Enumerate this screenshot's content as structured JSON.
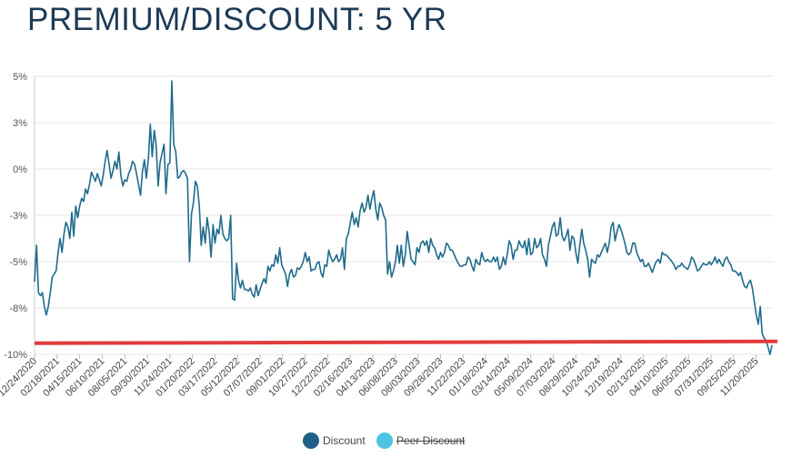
{
  "header": {
    "title": "PREMIUM/DISCOUNT: 5 YR"
  },
  "legend": {
    "discount_label": "Discount",
    "peer_label": "Peer Discount"
  },
  "colors": {
    "series_line": "#1f6b8c",
    "discount_dot": "#1f5f87",
    "peer_dot": "#4fc3e3",
    "threshold_line": "#e23b3b",
    "grid": "#e6e6e6"
  },
  "chart_data": {
    "type": "line",
    "title": "PREMIUM/DISCOUNT: 5 YR",
    "y_ticks": [
      "5%",
      "3%",
      "0%",
      "-3%",
      "-5%",
      "-8%",
      "-10%"
    ],
    "y_tick_values": [
      5,
      3,
      0,
      -3,
      -5,
      -8,
      -10
    ],
    "ylim": [
      -10,
      5
    ],
    "x_ticks": [
      "12/24/2020",
      "02/18/2021",
      "04/15/2021",
      "06/10/2021",
      "08/05/2021",
      "09/30/2021",
      "11/24/2021",
      "01/20/2022",
      "03/17/2022",
      "05/12/2022",
      "07/07/2022",
      "09/01/2022",
      "10/27/2022",
      "12/22/2022",
      "02/16/2023",
      "04/13/2023",
      "06/08/2023",
      "08/03/2023",
      "09/28/2023",
      "11/22/2023",
      "01/18/2024",
      "03/14/2024",
      "05/09/2024",
      "07/03/2024",
      "08/29/2024",
      "10/24/2024",
      "12/19/2024",
      "02/13/2025",
      "04/10/2025",
      "06/05/2025",
      "07/31/2025",
      "09/25/2025",
      "11/20/2025"
    ],
    "grid": true,
    "legend_position": "bottom-center",
    "threshold": -9.5,
    "series": [
      {
        "name": "Discount",
        "values": [
          -6.3,
          -4.3,
          -7.0,
          -7.2,
          -7.0,
          -7.9,
          -8.3,
          -7.9,
          -7.0,
          -6.0,
          -5.8,
          -5.6,
          -4.6,
          -4.0,
          -4.6,
          -3.8,
          -3.3,
          -3.5,
          -4.0,
          -2.8,
          -3.9,
          -2.4,
          -3.1,
          -2.4,
          -1.9,
          -2.1,
          -1.3,
          -1.6,
          -1.0,
          -0.2,
          -0.5,
          -0.8,
          -0.3,
          -0.7,
          -1.1,
          -0.4,
          0.5,
          1.2,
          0.3,
          -0.6,
          -0.1,
          0.5,
          0.0,
          1.1,
          -0.4,
          -1.1,
          -0.7,
          -0.8,
          -0.3,
          0.0,
          0.5,
          0.3,
          -0.3,
          -1.0,
          -1.7,
          -0.2,
          0.6,
          -0.6,
          0.6,
          2.9,
          0.8,
          2.5,
          1.6,
          -1.1,
          0.4,
          1.0,
          1.6,
          -1.6,
          0.3,
          0.4,
          4.8,
          1.6,
          1.1,
          -0.6,
          -0.5,
          -0.2,
          -0.1,
          -0.3,
          -0.6,
          -5.0,
          -2.9,
          -2.2,
          -0.8,
          -1.1,
          -2.4,
          -4.3,
          -3.5,
          -4.2,
          -3.1,
          -3.7,
          -4.8,
          -3.4,
          -4.2,
          -3.6,
          -3.8,
          -3.0,
          -3.8,
          -4.0,
          -4.1,
          -4.0,
          -3.0,
          -7.4,
          -7.5,
          -5.1,
          -6.2,
          -6.7,
          -6.2,
          -6.8,
          -6.8,
          -6.9,
          -6.7,
          -7.1,
          -7.3,
          -6.5,
          -7.2,
          -6.8,
          -6.4,
          -6.1,
          -6.4,
          -5.3,
          -5.6,
          -5.2,
          -5.3,
          -4.7,
          -5.1,
          -4.4,
          -5.2,
          -5.5,
          -5.8,
          -6.6,
          -5.8,
          -5.5,
          -6.0,
          -5.9,
          -5.4,
          -5.5,
          -5.3,
          -5.0,
          -4.6,
          -5.0,
          -4.8,
          -5.6,
          -5.5,
          -5.5,
          -5.1,
          -5.0,
          -5.7,
          -6.0,
          -5.2,
          -5.3,
          -4.5,
          -4.8,
          -5.0,
          -4.9,
          -4.7,
          -5.0,
          -4.9,
          -4.4,
          -5.5,
          -4.0,
          -3.8,
          -3.3,
          -2.8,
          -3.4,
          -3.1,
          -3.5,
          -2.7,
          -2.2,
          -2.8,
          -2.5,
          -1.7,
          -2.6,
          -1.9,
          -1.4,
          -2.6,
          -3.2,
          -2.2,
          -2.5,
          -3.0,
          -3.2,
          -5.8,
          -5.0,
          -6.0,
          -5.6,
          -5.0,
          -4.3,
          -5.1,
          -4.3,
          -5.3,
          -4.7,
          -3.7,
          -4.3,
          -4.9,
          -5.0,
          -5.2,
          -4.4,
          -4.6,
          -4.2,
          -4.1,
          -4.3,
          -4.1,
          -4.6,
          -4.0,
          -4.3,
          -4.4,
          -4.7,
          -4.9,
          -4.6,
          -4.8,
          -4.6,
          -4.2,
          -4.3,
          -4.5,
          -4.5,
          -4.7,
          -4.9,
          -5.1,
          -5.3,
          -5.3,
          -5.2,
          -5.2,
          -4.8,
          -4.9,
          -5.3,
          -5.6,
          -4.9,
          -5.1,
          -5.2,
          -4.6,
          -4.9,
          -5.0,
          -4.9,
          -5.0,
          -5.0,
          -4.8,
          -5.0,
          -4.8,
          -5.5,
          -5.3,
          -4.8,
          -5.2,
          -4.7,
          -4.1,
          -4.3,
          -4.9,
          -4.5,
          -4.5,
          -4.1,
          -4.3,
          -4.4,
          -4.1,
          -4.7,
          -4.0,
          -4.7,
          -4.6,
          -4.0,
          -4.4,
          -4.3,
          -4.0,
          -4.7,
          -4.9,
          -5.3,
          -4.3,
          -3.9,
          -3.5,
          -3.3,
          -3.9,
          -3.8,
          -3.1,
          -3.9,
          -4.1,
          -3.9,
          -3.6,
          -4.5,
          -3.9,
          -4.0,
          -4.6,
          -5.1,
          -4.3,
          -3.6,
          -4.2,
          -4.5,
          -4.9,
          -6.0,
          -4.9,
          -5.0,
          -5.1,
          -4.7,
          -4.8,
          -4.6,
          -4.4,
          -4.2,
          -4.6,
          -4.2,
          -3.5,
          -3.3,
          -4.1,
          -3.7,
          -3.4,
          -3.6,
          -3.9,
          -4.2,
          -4.6,
          -4.7,
          -4.6,
          -4.2,
          -4.2,
          -4.6,
          -4.8,
          -5.0,
          -4.9,
          -5.3,
          -5.3,
          -5.1,
          -5.4,
          -5.7,
          -5.3,
          -5.0,
          -4.9,
          -5.1,
          -4.6,
          -4.7,
          -4.7,
          -4.8,
          -4.9,
          -5.0,
          -5.2,
          -5.5,
          -5.3,
          -5.3,
          -5.1,
          -5.3,
          -5.4,
          -5.5,
          -5.2,
          -4.8,
          -4.9,
          -5.2,
          -5.6,
          -5.5,
          -5.3,
          -5.1,
          -5.2,
          -5.2,
          -5.0,
          -5.2,
          -5.0,
          -4.8,
          -5.1,
          -4.9,
          -5.1,
          -5.3,
          -4.9,
          -4.8,
          -5.0,
          -5.2,
          -5.6,
          -5.6,
          -5.7,
          -5.9,
          -5.7,
          -6.2,
          -6.6,
          -6.7,
          -6.4,
          -6.2,
          -6.7,
          -7.6,
          -8.3,
          -8.7,
          -7.9,
          -9.1,
          -9.3,
          -9.4,
          -9.7,
          -10.0,
          -9.6
        ]
      }
    ]
  }
}
